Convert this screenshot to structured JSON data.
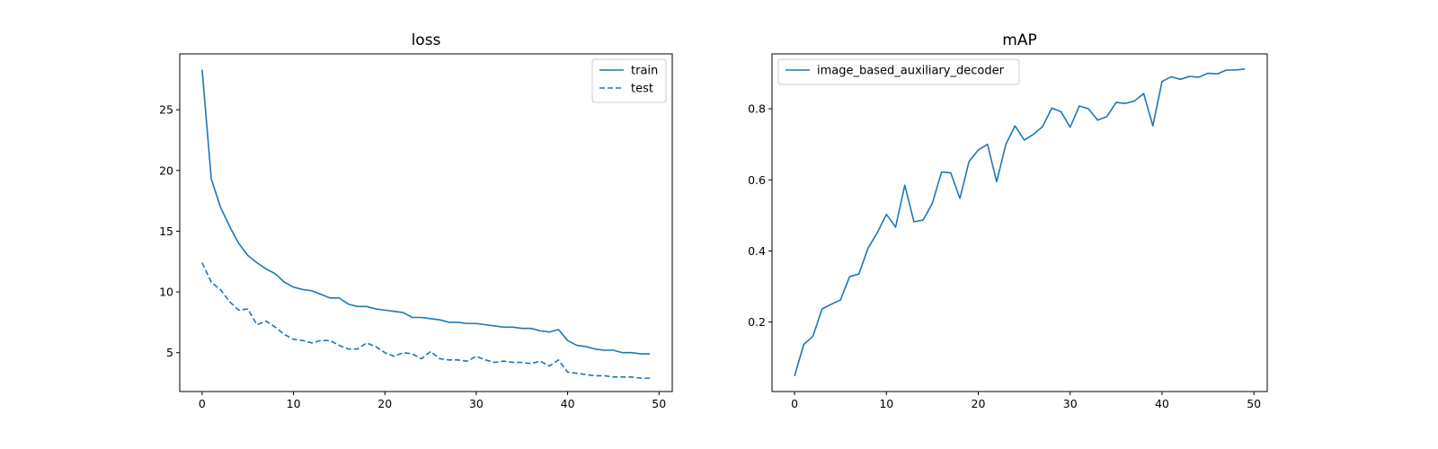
{
  "chart_data": [
    {
      "type": "line",
      "title": "loss",
      "xlabel": "",
      "ylabel": "",
      "xlim": [
        -2.45,
        51.45
      ],
      "ylim": [
        1.8,
        29.6
      ],
      "xticks": [
        0,
        10,
        20,
        30,
        40,
        50
      ],
      "yticks": [
        5,
        10,
        15,
        20,
        25
      ],
      "grid": false,
      "legend": "top-right",
      "x": [
        0,
        1,
        2,
        3,
        4,
        5,
        6,
        7,
        8,
        9,
        10,
        11,
        12,
        13,
        14,
        15,
        16,
        17,
        18,
        19,
        20,
        21,
        22,
        23,
        24,
        25,
        26,
        27,
        28,
        29,
        30,
        31,
        32,
        33,
        34,
        35,
        36,
        37,
        38,
        39,
        40,
        41,
        42,
        43,
        44,
        45,
        46,
        47,
        48,
        49
      ],
      "series": [
        {
          "name": "train",
          "style": "solid",
          "color": "#1f77b4",
          "values": [
            28.3,
            19.3,
            17.0,
            15.4,
            14.0,
            13.0,
            12.4,
            11.9,
            11.5,
            10.8,
            10.4,
            10.2,
            10.1,
            9.8,
            9.5,
            9.5,
            9.0,
            8.8,
            8.8,
            8.6,
            8.5,
            8.4,
            8.3,
            7.9,
            7.9,
            7.8,
            7.7,
            7.5,
            7.5,
            7.4,
            7.4,
            7.3,
            7.2,
            7.1,
            7.1,
            7.0,
            7.0,
            6.8,
            6.7,
            6.9,
            6.0,
            5.6,
            5.5,
            5.3,
            5.2,
            5.2,
            5.0,
            5.0,
            4.9,
            4.9
          ]
        },
        {
          "name": "test",
          "style": "dashed",
          "color": "#1f77b4",
          "values": [
            12.4,
            10.8,
            10.2,
            9.2,
            8.5,
            8.6,
            7.3,
            7.6,
            7.1,
            6.5,
            6.1,
            6.0,
            5.8,
            6.0,
            6.0,
            5.6,
            5.3,
            5.3,
            5.8,
            5.5,
            5.0,
            4.7,
            5.0,
            4.9,
            4.5,
            5.1,
            4.5,
            4.4,
            4.4,
            4.3,
            4.7,
            4.4,
            4.2,
            4.3,
            4.2,
            4.2,
            4.1,
            4.3,
            3.9,
            4.4,
            3.4,
            3.3,
            3.2,
            3.1,
            3.1,
            3.0,
            3.0,
            3.0,
            2.9,
            2.9
          ]
        }
      ]
    },
    {
      "type": "line",
      "title": "mAP",
      "xlabel": "",
      "ylabel": "",
      "xlim": [
        -2.45,
        51.45
      ],
      "ylim": [
        0.0045,
        0.9545
      ],
      "xticks": [
        0,
        10,
        20,
        30,
        40,
        50
      ],
      "yticks": [
        0.2,
        0.4,
        0.6,
        0.8
      ],
      "grid": false,
      "legend": "top-left",
      "x": [
        0,
        1,
        2,
        3,
        4,
        5,
        6,
        7,
        8,
        9,
        10,
        11,
        12,
        13,
        14,
        15,
        16,
        17,
        18,
        19,
        20,
        21,
        22,
        23,
        24,
        25,
        26,
        27,
        28,
        29,
        30,
        31,
        32,
        33,
        34,
        35,
        36,
        37,
        38,
        39,
        40,
        41,
        42,
        43,
        44,
        45,
        46,
        47,
        48,
        49
      ],
      "series": [
        {
          "name": "image_based_auxiliary_decoder",
          "style": "solid",
          "color": "#1f77b4",
          "values": [
            0.048,
            0.137,
            0.16,
            0.237,
            0.25,
            0.262,
            0.328,
            0.335,
            0.408,
            0.451,
            0.503,
            0.467,
            0.585,
            0.482,
            0.487,
            0.534,
            0.622,
            0.62,
            0.548,
            0.652,
            0.684,
            0.7,
            0.595,
            0.7,
            0.752,
            0.712,
            0.728,
            0.75,
            0.802,
            0.792,
            0.748,
            0.808,
            0.8,
            0.768,
            0.778,
            0.818,
            0.815,
            0.822,
            0.843,
            0.752,
            0.877,
            0.89,
            0.883,
            0.891,
            0.889,
            0.9,
            0.898,
            0.909,
            0.909,
            0.912
          ]
        }
      ]
    }
  ]
}
